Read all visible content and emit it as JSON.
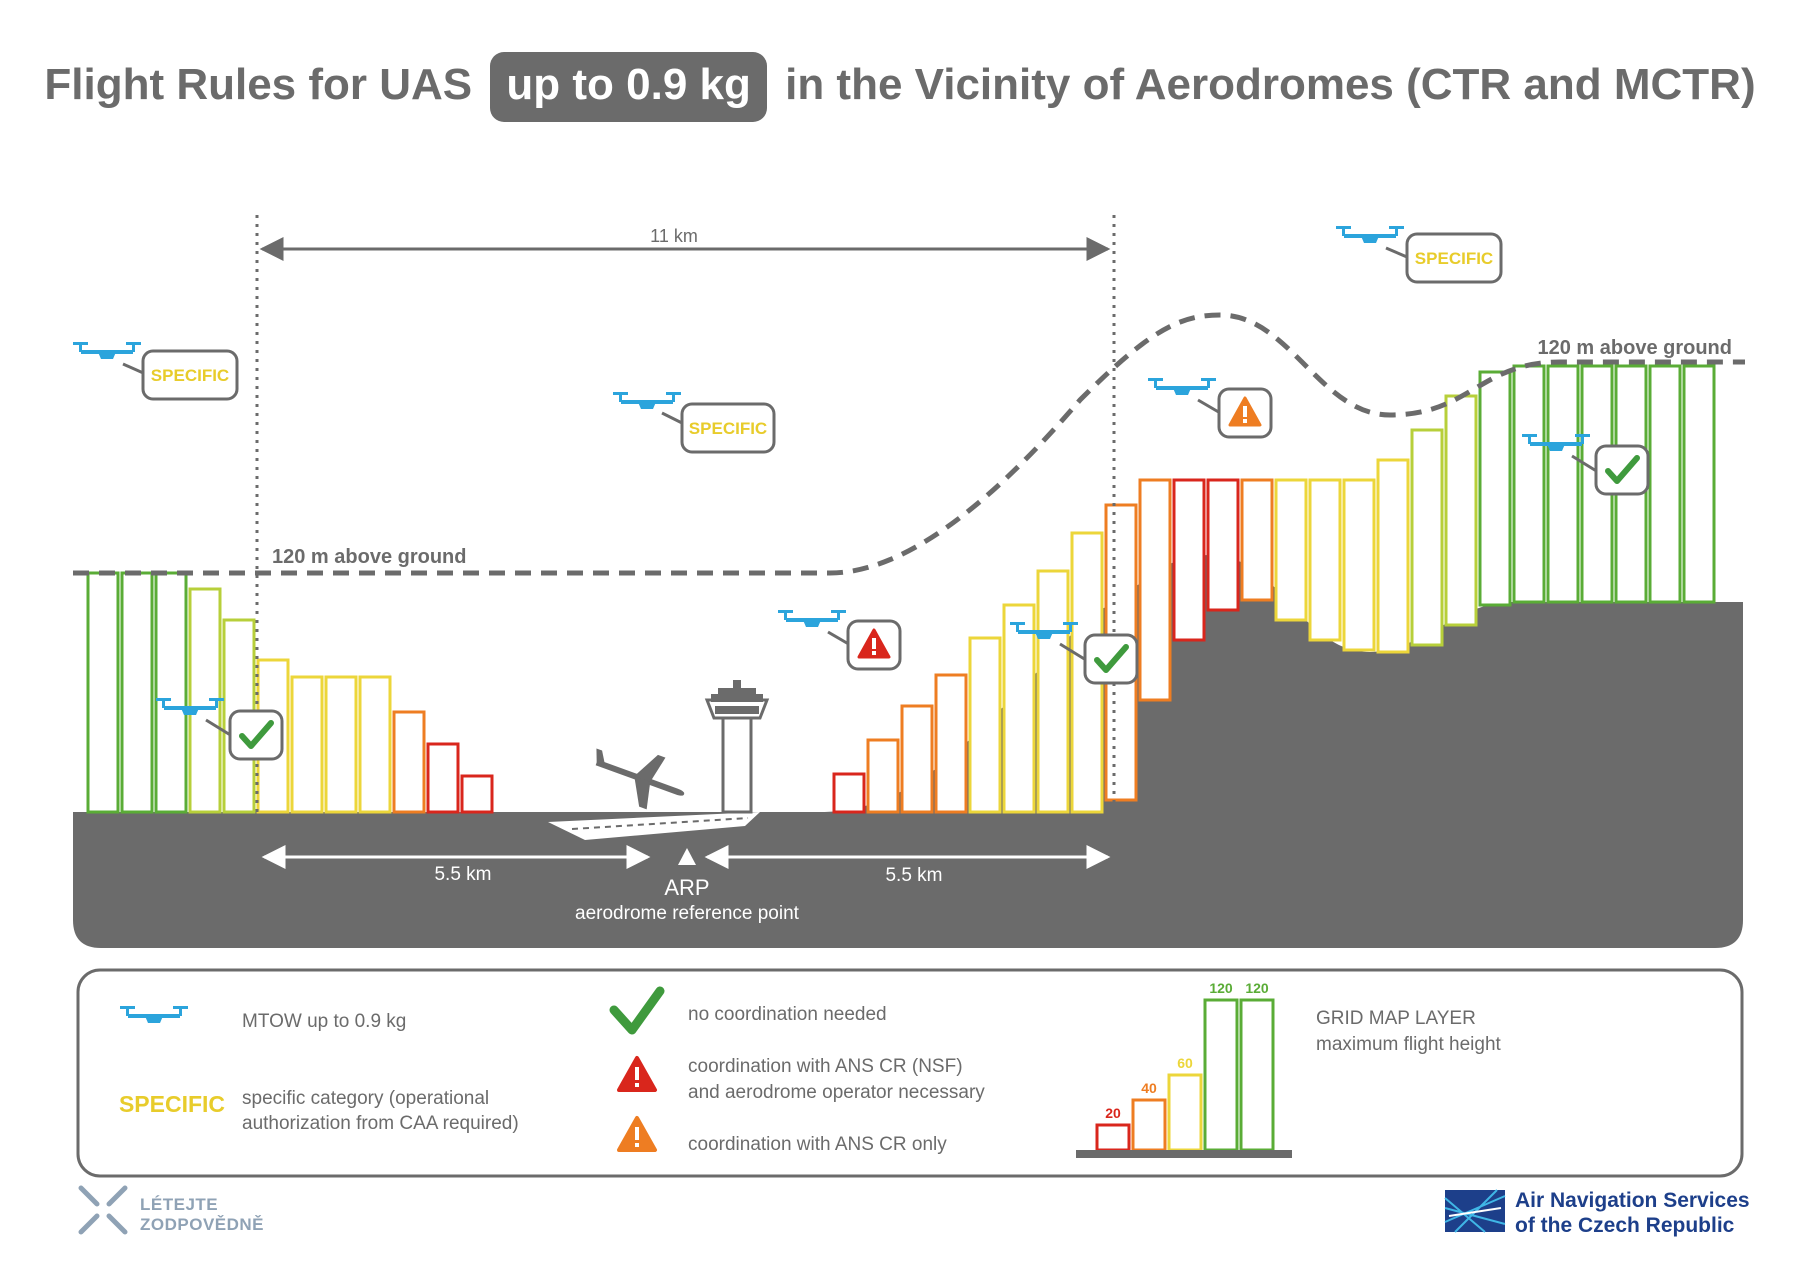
{
  "title": {
    "before": "Flight Rules for UAS",
    "highlight": "up to 0.9 kg",
    "after": "in the Vicinity of Aerodromes (CTR and MCTR)"
  },
  "scene": {
    "distance_total": "11 km",
    "distance_left": "5.5 km",
    "distance_right": "5.5 km",
    "height_label_left": "120 m above ground",
    "height_label_right": "120 m above ground",
    "arp_label": "ARP",
    "arp_caption": "aerodrome reference point",
    "bubbles": {
      "specific_1": "SPECIFIC",
      "specific_2": "SPECIFIC",
      "specific_3": "SPECIFIC"
    }
  },
  "legend": {
    "drone_text": "MTOW up to 0.9 kg",
    "specific_word": "SPECIFIC",
    "specific_text_1": "specific category (operational",
    "specific_text_2": "authorization from CAA required)",
    "check_text": "no coordination needed",
    "red_text_1": "coordination with ANS CR (NSF)",
    "red_text_2": "and aerodrome operator necessary",
    "orange_text": "coordination with ANS CR only",
    "grid_title": "GRID MAP LAYER",
    "grid_subtitle": "maximum flight height",
    "grid_values": [
      "20",
      "40",
      "60",
      "120",
      "120"
    ]
  },
  "footer": {
    "left_brand_1": "LÉTEJTE",
    "left_brand_2": "ZODPOVĚDNĚ",
    "right_brand_1": "Air Navigation Services",
    "right_brand_2": "of the Czech Republic"
  },
  "colors": {
    "ground": "#6b6b6b",
    "green": "#5aac36",
    "yellow_green": "#b7cf3a",
    "yellow": "#ecd63a",
    "orange": "#ee7d22",
    "red": "#d9261c",
    "drone": "#2ba4dc",
    "specific": "#e8cc2b"
  }
}
